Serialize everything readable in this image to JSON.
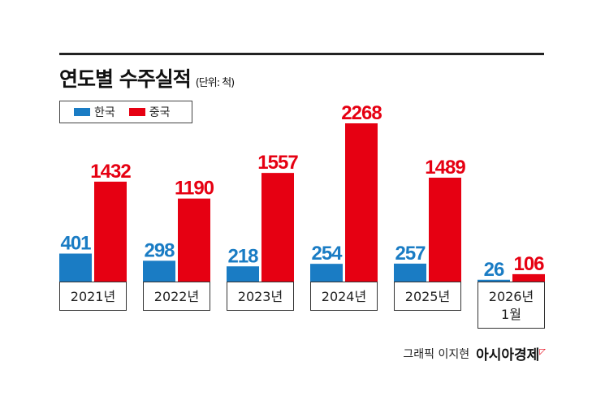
{
  "title": "연도별 수주실적",
  "unit": "(단위: 척)",
  "credit": "그래픽 이지현",
  "logo": "아시아경제",
  "chart_data": {
    "type": "bar",
    "categories": [
      [
        "2021년"
      ],
      [
        "2022년"
      ],
      [
        "2023년"
      ],
      [
        "2024년"
      ],
      [
        "2025년"
      ],
      [
        "2026년",
        "1월"
      ]
    ],
    "series": [
      {
        "name": "한국",
        "color": "#1a7cc4",
        "values": [
          401,
          298,
          218,
          254,
          257,
          26
        ]
      },
      {
        "name": "중국",
        "color": "#e60012",
        "values": [
          1432,
          1190,
          1557,
          2268,
          1489,
          106
        ]
      }
    ],
    "legend": "top-left",
    "grid": false
  }
}
